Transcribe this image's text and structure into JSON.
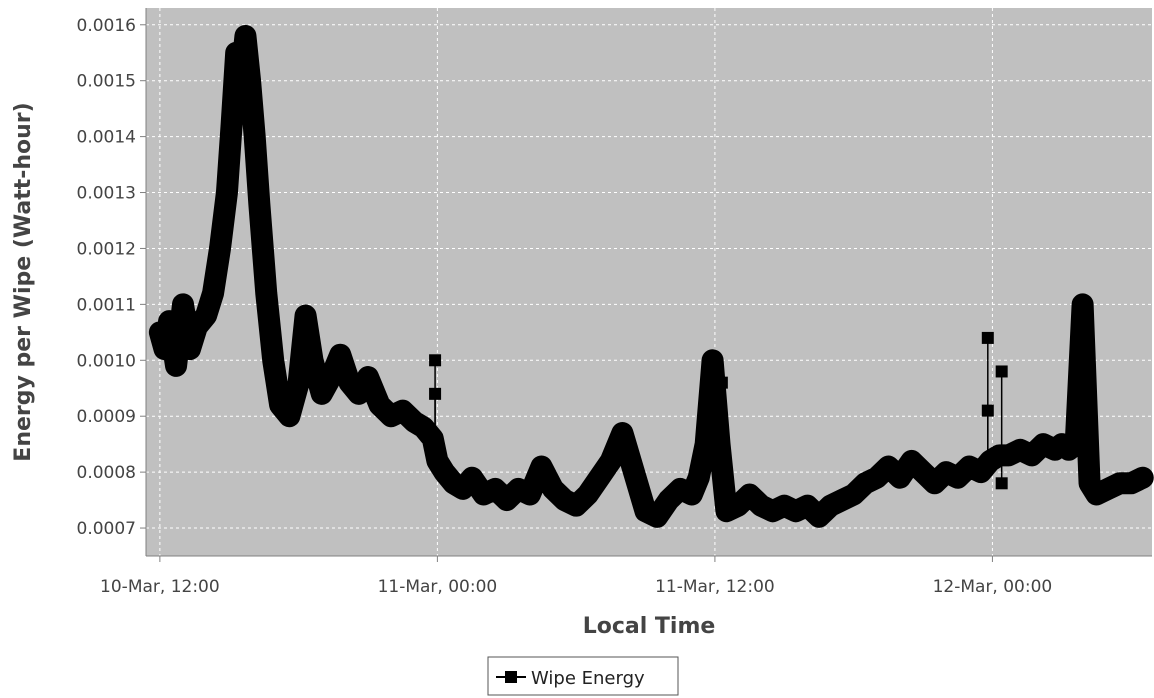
{
  "chart_data": {
    "type": "line",
    "title": "",
    "xlabel": "Local Time",
    "ylabel": "Energy per Wipe (Watt-hour)",
    "xlim_hours": [
      -0.6,
      42.9
    ],
    "ylim": [
      0.00065,
      0.00163
    ],
    "x_ticks": [
      {
        "hour": 0,
        "label": "10-Mar, 12:00"
      },
      {
        "hour": 12,
        "label": "11-Mar, 00:00"
      },
      {
        "hour": 24,
        "label": "11-Mar, 12:00"
      },
      {
        "hour": 36,
        "label": "12-Mar, 00:00"
      }
    ],
    "y_ticks": [
      "0.0007",
      "0.0008",
      "0.0009",
      "0.0010",
      "0.0011",
      "0.0012",
      "0.0013",
      "0.0014",
      "0.0015",
      "0.0016"
    ],
    "grid": true,
    "background": "#c0c0c0",
    "legend_position": "bottom-center",
    "series": [
      {
        "name": "Wipe Energy",
        "color": "#000000",
        "marker": "square",
        "x_hours": [
          0.0,
          0.2,
          0.4,
          0.7,
          1.0,
          1.3,
          1.6,
          2.0,
          2.3,
          2.6,
          2.9,
          3.1,
          3.3,
          3.5,
          3.7,
          3.9,
          4.1,
          4.3,
          4.6,
          4.9,
          5.2,
          5.6,
          6.0,
          6.3,
          6.6,
          7.0,
          7.4,
          7.8,
          8.2,
          8.6,
          9.0,
          9.5,
          10.0,
          10.5,
          11.0,
          11.4,
          11.8,
          12.0,
          12.3,
          12.7,
          13.1,
          13.5,
          14.0,
          14.5,
          15.0,
          15.5,
          16.0,
          16.5,
          17.0,
          17.5,
          18.0,
          18.5,
          19.0,
          19.5,
          20.0,
          20.5,
          21.0,
          21.5,
          22.0,
          22.5,
          23.0,
          23.3,
          23.6,
          23.9,
          24.2,
          24.5,
          25.0,
          25.5,
          26.0,
          26.5,
          27.0,
          27.5,
          28.0,
          28.5,
          29.0,
          29.5,
          30.0,
          30.5,
          31.0,
          31.5,
          32.0,
          32.5,
          33.0,
          33.5,
          34.0,
          34.5,
          35.0,
          35.5,
          35.9,
          36.3,
          36.7,
          37.2,
          37.7,
          38.2,
          38.7,
          39.0,
          39.3,
          39.6,
          39.9,
          40.2,
          40.5,
          41.0,
          41.5,
          42.0,
          42.5
        ],
        "values": [
          0.00105,
          0.00102,
          0.00107,
          0.00099,
          0.0011,
          0.00102,
          0.00106,
          0.00108,
          0.00112,
          0.0012,
          0.0013,
          0.00142,
          0.00155,
          0.0015,
          0.00158,
          0.0015,
          0.0014,
          0.00128,
          0.00112,
          0.001,
          0.00092,
          0.0009,
          0.00096,
          0.00108,
          0.001,
          0.00094,
          0.00097,
          0.00101,
          0.00096,
          0.00094,
          0.00097,
          0.00092,
          0.0009,
          0.00091,
          0.00089,
          0.00088,
          0.00086,
          0.00082,
          0.0008,
          0.00078,
          0.00077,
          0.00079,
          0.00076,
          0.00077,
          0.00075,
          0.00077,
          0.00076,
          0.00081,
          0.00077,
          0.00075,
          0.00074,
          0.00076,
          0.00079,
          0.00082,
          0.00087,
          0.0008,
          0.00073,
          0.00072,
          0.00075,
          0.00077,
          0.00076,
          0.00079,
          0.00085,
          0.001,
          0.00085,
          0.00073,
          0.00074,
          0.00076,
          0.00074,
          0.00073,
          0.00074,
          0.00073,
          0.00074,
          0.00072,
          0.00074,
          0.00075,
          0.00076,
          0.00078,
          0.00079,
          0.00081,
          0.00079,
          0.00082,
          0.0008,
          0.00078,
          0.0008,
          0.00079,
          0.00081,
          0.0008,
          0.00082,
          0.00083,
          0.00083,
          0.00084,
          0.00083,
          0.00085,
          0.00084,
          0.00085,
          0.00084,
          0.00085,
          0.0011,
          0.00078,
          0.00076,
          0.00077,
          0.00078,
          0.00078,
          0.00079
        ],
        "outliers": [
          {
            "hour": 11.9,
            "value": 0.001
          },
          {
            "hour": 11.9,
            "value": 0.00094
          },
          {
            "hour": 24.3,
            "value": 0.00096
          },
          {
            "hour": 35.8,
            "value": 0.00104
          },
          {
            "hour": 35.8,
            "value": 0.00091
          },
          {
            "hour": 36.4,
            "value": 0.00098
          },
          {
            "hour": 36.4,
            "value": 0.00078
          }
        ]
      }
    ]
  }
}
